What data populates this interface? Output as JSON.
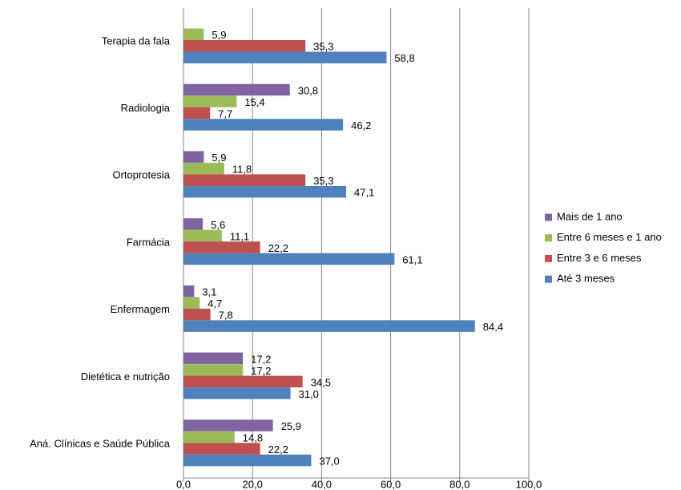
{
  "chart_data": {
    "type": "hbar",
    "categories": [
      "Terapia da fala",
      "Radiologia",
      "Ortoprotesia",
      "Farmácia",
      "Enfermagem",
      "Dietética e nutrição",
      "Aná. Clínicas e Saúde Pública"
    ],
    "series": [
      {
        "name": "Mais de 1 ano",
        "color": "#8064a2",
        "values": [
          null,
          30.8,
          5.9,
          5.6,
          3.1,
          17.2,
          25.9
        ],
        "value_labels": [
          null,
          "30,8",
          "5,9",
          "5,6",
          "3,1",
          "17,2",
          "25,9"
        ]
      },
      {
        "name": "Entre 6 meses e 1 ano",
        "color": "#9bbb59",
        "values": [
          5.9,
          15.4,
          11.8,
          11.1,
          4.7,
          17.2,
          14.8
        ],
        "value_labels": [
          "5,9",
          "15,4",
          "11,8",
          "11,1",
          "4,7",
          "17,2",
          "14,8"
        ]
      },
      {
        "name": "Entre 3 e 6 meses",
        "color": "#c0504d",
        "values": [
          35.3,
          7.7,
          35.3,
          22.2,
          7.8,
          34.5,
          22.2
        ],
        "value_labels": [
          "35,3",
          "7,7",
          "35,3",
          "22,2",
          "7,8",
          "34,5",
          "22,2"
        ]
      },
      {
        "name": "Até 3 meses",
        "color": "#4f81bd",
        "values": [
          58.8,
          46.2,
          47.1,
          61.1,
          84.4,
          31.0,
          37.0
        ],
        "value_labels": [
          "58,8",
          "46,2",
          "47,1",
          "61,1",
          "84,4",
          "31,0",
          "37,0"
        ]
      }
    ],
    "xlim": [
      0,
      100
    ],
    "xticks": [
      {
        "value": 0,
        "label": "0,0"
      },
      {
        "value": 20,
        "label": "20,0"
      },
      {
        "value": 40,
        "label": "40,0"
      },
      {
        "value": 60,
        "label": "60,0"
      },
      {
        "value": 80,
        "label": "80,0"
      },
      {
        "value": 100,
        "label": "100,0"
      }
    ],
    "grid": true,
    "legend": "right"
  }
}
